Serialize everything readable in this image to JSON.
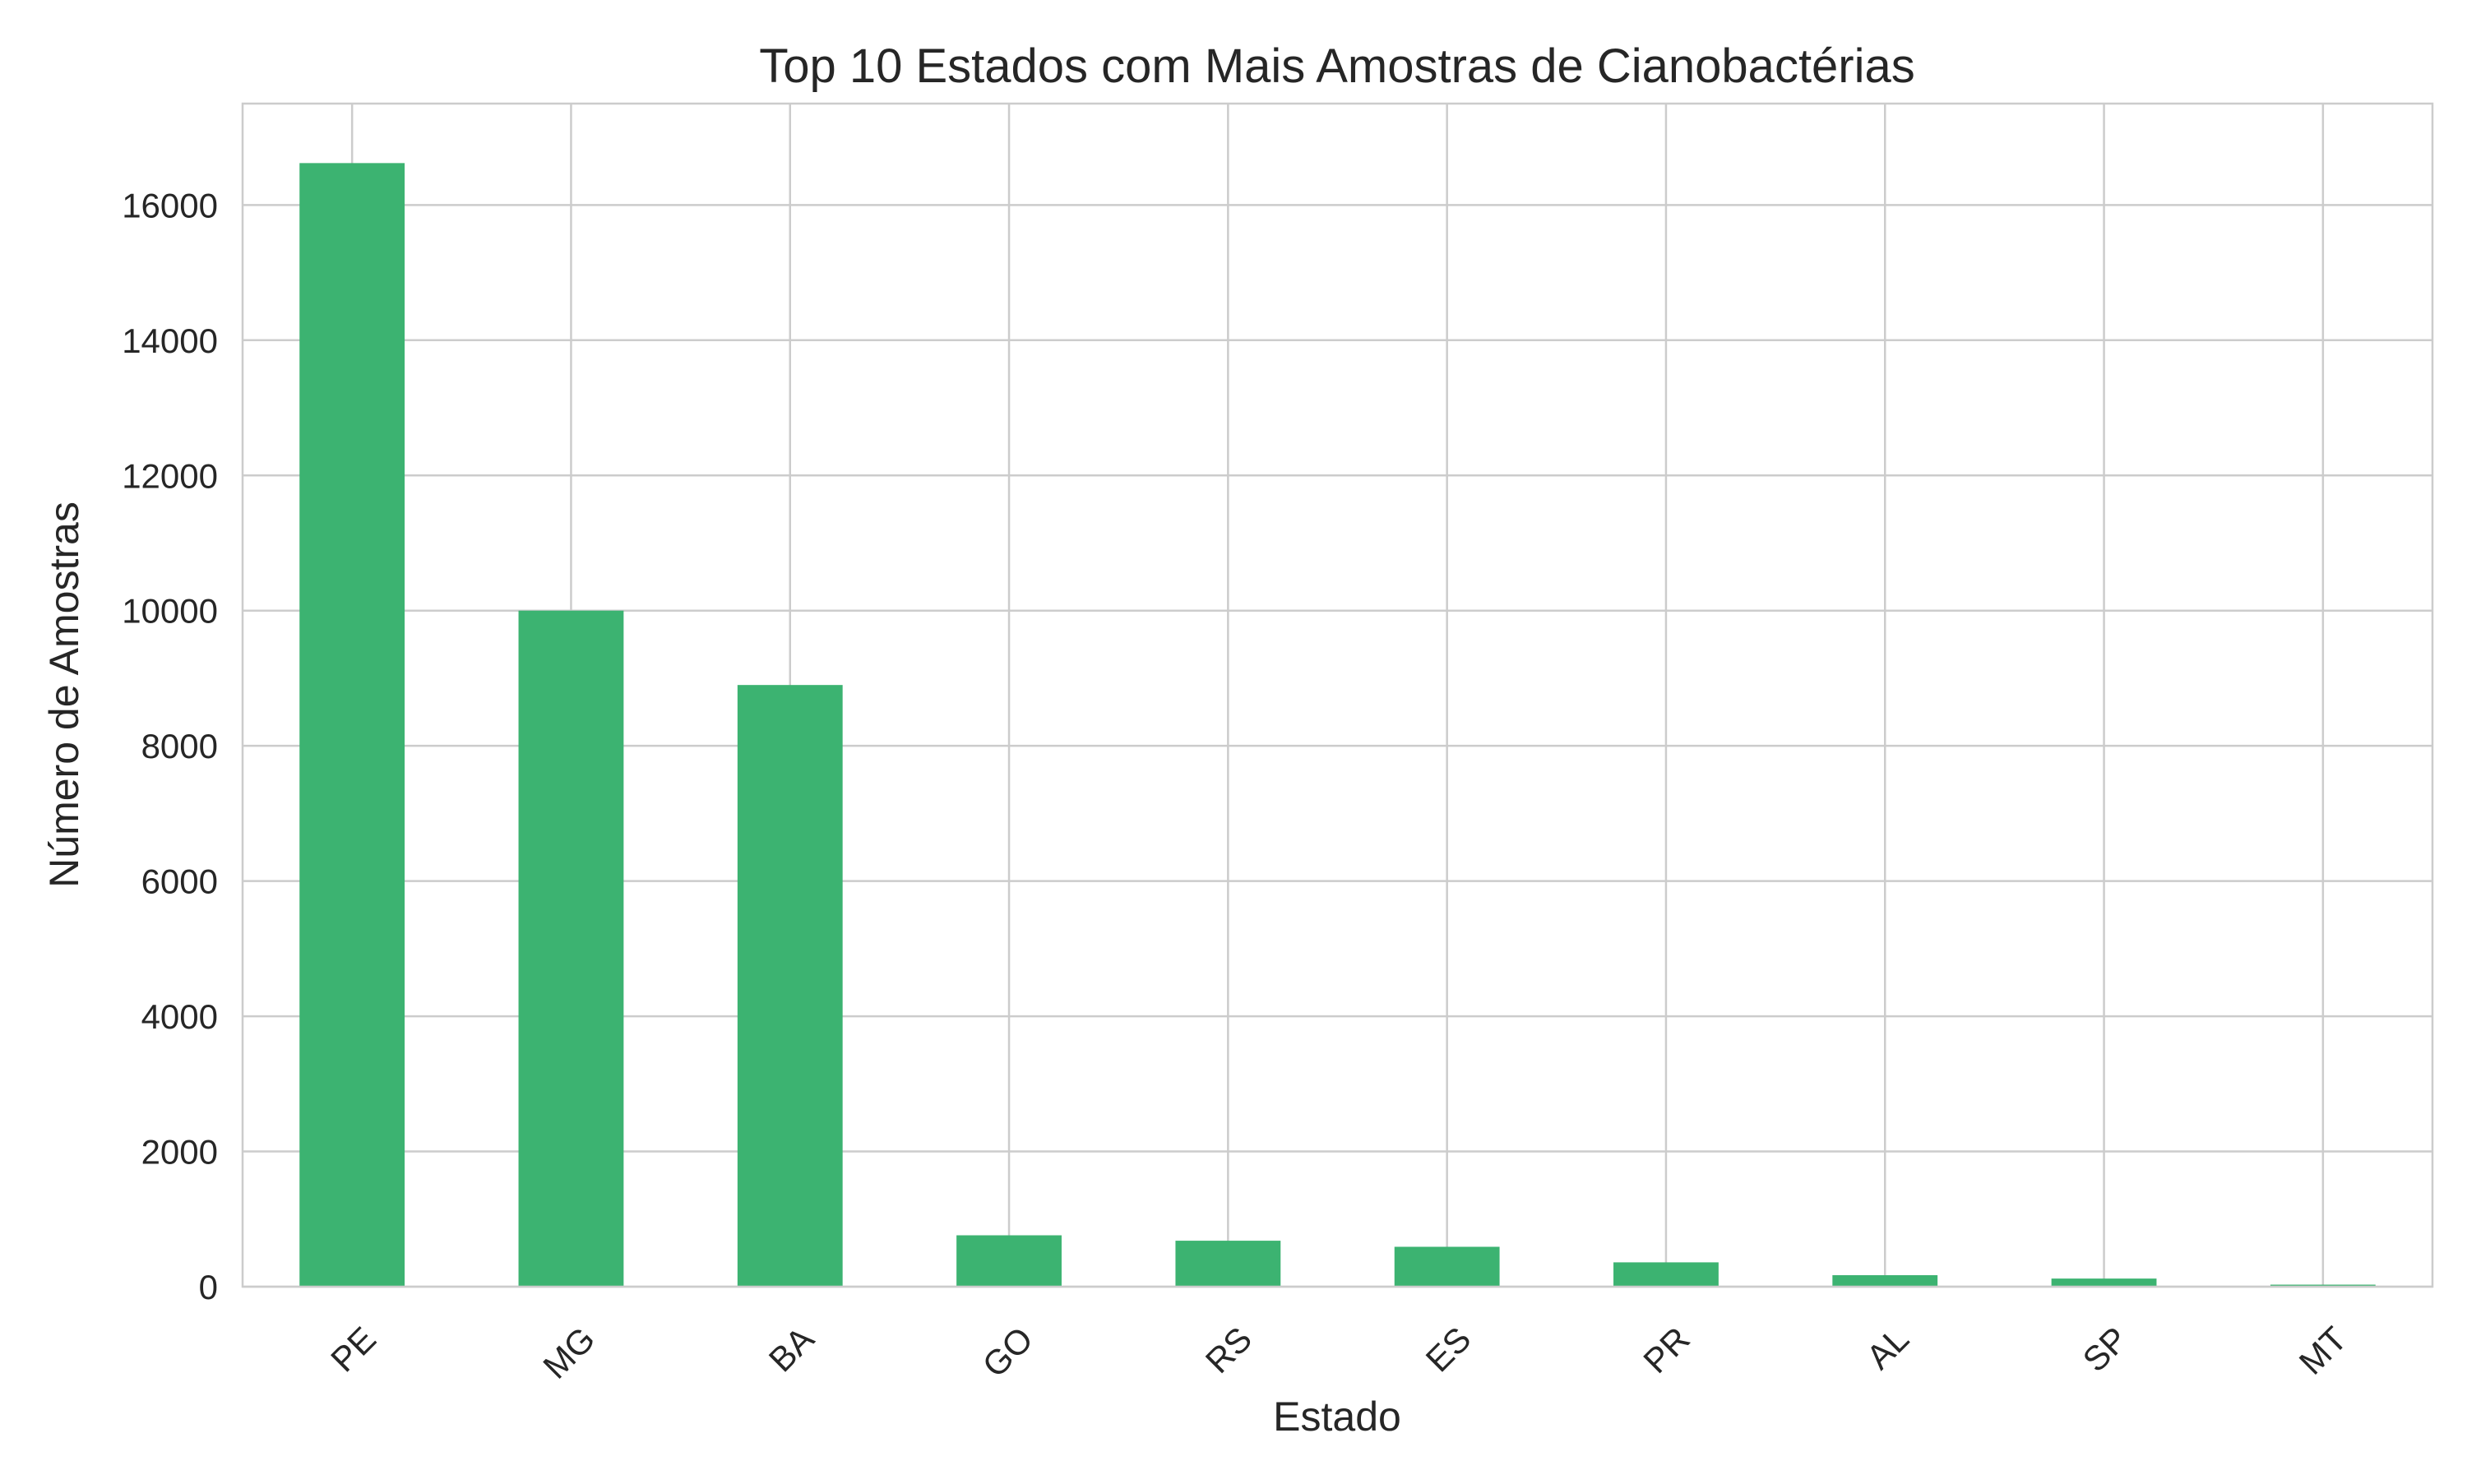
{
  "chart_data": {
    "type": "bar",
    "title": "Top 10 Estados com Mais Amostras de Cianobactérias",
    "xlabel": "Estado",
    "ylabel": "Número de Amostras",
    "categories": [
      "PE",
      "MG",
      "BA",
      "GO",
      "RS",
      "ES",
      "PR",
      "AL",
      "SP",
      "MT"
    ],
    "values": [
      16620,
      10000,
      8900,
      760,
      680,
      590,
      360,
      170,
      120,
      30
    ],
    "ylim": [
      0,
      17500
    ],
    "yticks": [
      0,
      2000,
      4000,
      6000,
      8000,
      10000,
      12000,
      14000,
      16000
    ],
    "ytick_labels": [
      "0",
      "2000",
      "4000",
      "6000",
      "8000",
      "10000",
      "12000",
      "14000",
      "16000"
    ],
    "grid": true,
    "legend": "none",
    "bar_color": "#3cb371",
    "xtick_rotation": -45
  }
}
